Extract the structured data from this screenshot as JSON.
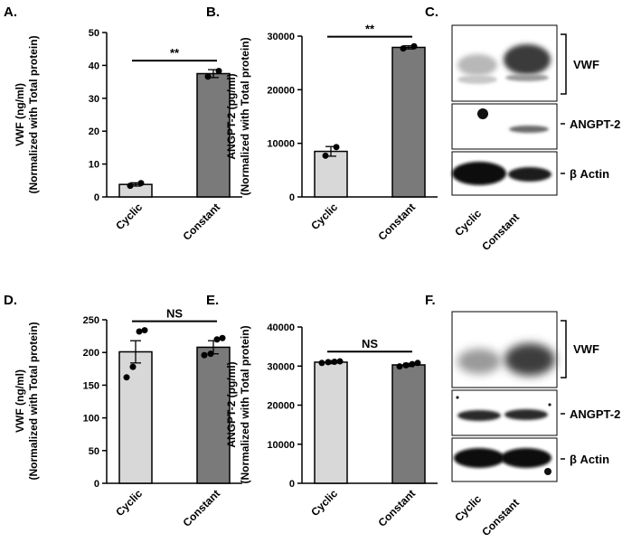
{
  "panels": {
    "A": "A.",
    "B": "B.",
    "C": "C.",
    "D": "D.",
    "E": "E.",
    "F": "F."
  },
  "chart_data": [
    {
      "id": "A",
      "type": "bar",
      "categories": [
        "Cyclic",
        "Constant"
      ],
      "values": [
        3.8,
        37.5
      ],
      "errors": [
        0.5,
        1.2
      ],
      "points": [
        [
          3.4,
          4.2
        ],
        [
          36.6,
          38.3
        ]
      ],
      "ylabel_line1": "VWF (ng/ml)",
      "ylabel_line2": "(Normalized with Total protein)",
      "ylim": [
        0,
        50
      ],
      "yticks": [
        "0",
        "10",
        "20",
        "30",
        "40",
        "50"
      ],
      "significance": "**",
      "colors": [
        "#d8d8d8",
        "#7a7a7a"
      ]
    },
    {
      "id": "B",
      "type": "bar",
      "categories": [
        "Cyclic",
        "Constant"
      ],
      "values": [
        8500,
        27900
      ],
      "errors": [
        900,
        300
      ],
      "points": [
        [
          7700,
          9300
        ],
        [
          27700,
          28100
        ]
      ],
      "ylabel_line1": "ANGPT-2 (pg/ml)",
      "ylabel_line2": "(Normalized with Total protein)",
      "ylim": [
        0,
        30000
      ],
      "yticks": [
        "0",
        "10000",
        "20000",
        "30000"
      ],
      "significance": "**",
      "colors": [
        "#d8d8d8",
        "#7a7a7a"
      ]
    },
    {
      "id": "D",
      "type": "bar",
      "categories": [
        "Cyclic",
        "Constant"
      ],
      "values": [
        201,
        208
      ],
      "errors": [
        17,
        10
      ],
      "points": [
        [
          162,
          178,
          232,
          234
        ],
        [
          196,
          198,
          220,
          222
        ]
      ],
      "ylabel_line1": "VWF (ng/ml)",
      "ylabel_line2": "(Normalized with Total protein)",
      "ylim": [
        0,
        250
      ],
      "yticks": [
        "0",
        "50",
        "100",
        "150",
        "200",
        "250"
      ],
      "significance": "NS",
      "colors": [
        "#d8d8d8",
        "#7a7a7a"
      ]
    },
    {
      "id": "E",
      "type": "bar",
      "categories": [
        "Cyclic",
        "Constant"
      ],
      "values": [
        31000,
        30300
      ],
      "errors": [
        400,
        400
      ],
      "points": [
        [
          30800,
          31000,
          31100,
          31200
        ],
        [
          29900,
          30200,
          30500,
          30800
        ]
      ],
      "ylabel_line1": "ANGPT-2 (pg/ml)",
      "ylabel_line2": "(Normalized with Total protein)",
      "ylim": [
        0,
        40000
      ],
      "yticks": [
        "0",
        "10000",
        "20000",
        "30000",
        "40000"
      ],
      "significance": "NS",
      "colors": [
        "#d8d8d8",
        "#7a7a7a"
      ]
    }
  ],
  "blots": {
    "C": {
      "labels": [
        "VWF",
        "ANGPT-2",
        "β Actin"
      ],
      "lanes": [
        "Cyclic",
        "Constant"
      ]
    },
    "F": {
      "labels": [
        "VWF",
        "ANGPT-2",
        "β Actin"
      ],
      "lanes": [
        "Cyclic",
        "Constant"
      ]
    }
  }
}
